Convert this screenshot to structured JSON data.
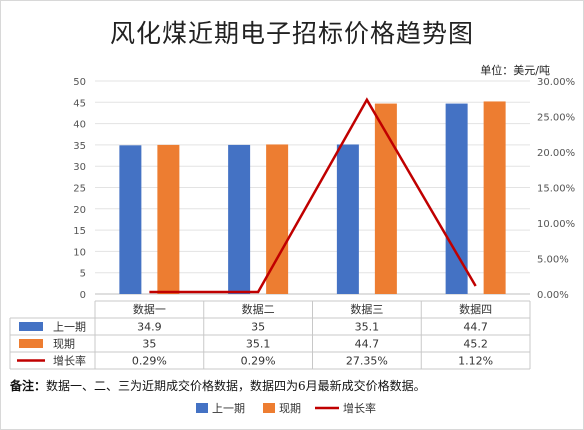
{
  "chart_data": {
    "type": "bar",
    "title": "风化煤近期电子招标价格趋势图",
    "unit_label": "单位：美元/吨",
    "categories": [
      "数据一",
      "数据二",
      "数据三",
      "数据四"
    ],
    "series": [
      {
        "name": "上一期",
        "kind": "bar",
        "axis": "left",
        "color": "#4472C4",
        "values": [
          34.9,
          35,
          35.1,
          44.7
        ],
        "labels": [
          "34.9",
          "35",
          "35.1",
          "44.7"
        ]
      },
      {
        "name": "现期",
        "kind": "bar",
        "axis": "left",
        "color": "#ED7D31",
        "values": [
          35,
          35.1,
          44.7,
          45.2
        ],
        "labels": [
          "35",
          "35.1",
          "44.7",
          "45.2"
        ]
      },
      {
        "name": "增长率",
        "kind": "line",
        "axis": "right",
        "color": "#C00000",
        "values": [
          0.29,
          0.29,
          27.35,
          1.12
        ],
        "labels": [
          "0.29%",
          "0.29%",
          "27.35%",
          "1.12%"
        ]
      }
    ],
    "y_left": {
      "min": 0,
      "max": 50,
      "step": 5,
      "ticks": [
        "0",
        "5",
        "10",
        "15",
        "20",
        "25",
        "30",
        "35",
        "40",
        "45",
        "50"
      ]
    },
    "y_right": {
      "min": 0,
      "max": 30,
      "step": 5,
      "ticks": [
        "0.00%",
        "5.00%",
        "10.00%",
        "15.00%",
        "20.00%",
        "25.00%",
        "30.00%"
      ]
    },
    "grid": true,
    "legend_position": "bottom",
    "data_table": true,
    "footnote_label": "备注：",
    "footnote": "数据一、二、三为近期成交价格数据，数据四为6月最新成交价格数据。"
  }
}
